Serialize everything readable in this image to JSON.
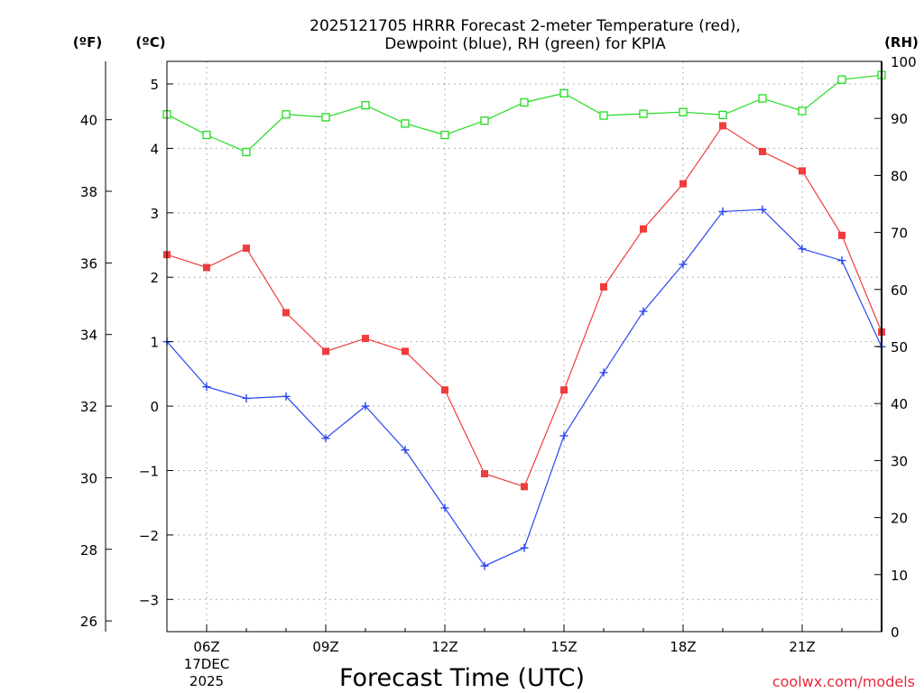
{
  "chart_data": {
    "type": "line",
    "title_lines": [
      "2025121705 HRRR Forecast 2-meter Temperature (red),",
      "Dewpoint (blue), RH (green) for KPIA"
    ],
    "xlabel": "Forecast Time (UTC)",
    "credit": "coolwx.com/models",
    "units": {
      "fahrenheit": "(ºF)",
      "celsius": "(ºC)",
      "rh": "(RH)"
    },
    "x": [
      5,
      6,
      7,
      8,
      9,
      10,
      11,
      12,
      13,
      14,
      15,
      16,
      17,
      18,
      19,
      20,
      21,
      22,
      23
    ],
    "xlim": [
      5,
      23
    ],
    "x_ticks": [
      {
        "x": 6,
        "label": "06Z",
        "sub": [
          "17DEC",
          "2025"
        ]
      },
      {
        "x": 9,
        "label": "09Z"
      },
      {
        "x": 12,
        "label": "12Z"
      },
      {
        "x": 15,
        "label": "15Z"
      },
      {
        "x": 18,
        "label": "18Z"
      },
      {
        "x": 21,
        "label": "21Z"
      }
    ],
    "celsius_axis": {
      "range": [
        -3.5,
        5.35
      ],
      "ticks": [
        -3,
        -2,
        -1,
        0,
        1,
        2,
        3,
        4,
        5
      ],
      "tick_labels": [
        "−3",
        "−2",
        "−1",
        "0",
        "1",
        "2",
        "3",
        "4",
        "5"
      ]
    },
    "fahrenheit_axis": {
      "range": [
        25.7,
        41.63
      ],
      "ticks": [
        26,
        28,
        30,
        32,
        34,
        36,
        38,
        40
      ],
      "tick_labels": [
        "26",
        "28",
        "30",
        "32",
        "34",
        "36",
        "38",
        "40"
      ]
    },
    "rh_axis": {
      "range": [
        0,
        100
      ],
      "ticks": [
        0,
        10,
        20,
        30,
        40,
        50,
        60,
        70,
        80,
        90,
        100
      ],
      "tick_labels": [
        "0",
        "10",
        "20",
        "30",
        "40",
        "50",
        "60",
        "70",
        "80",
        "90",
        "100"
      ]
    },
    "series": [
      {
        "name": "2-meter Temperature",
        "unit": "C",
        "color": "#f03c3c",
        "marker": "filled-square",
        "values": [
          2.35,
          2.15,
          2.45,
          1.45,
          0.85,
          1.05,
          0.85,
          0.25,
          -1.05,
          -1.25,
          0.25,
          1.85,
          2.75,
          3.45,
          4.35,
          3.95,
          3.65,
          2.65,
          1.15
        ]
      },
      {
        "name": "Dewpoint",
        "unit": "C",
        "color": "#2846f0",
        "marker": "plus",
        "values": [
          1.0,
          0.3,
          0.12,
          0.15,
          -0.5,
          0.0,
          -0.68,
          -1.58,
          -2.48,
          -2.2,
          -0.46,
          0.52,
          1.47,
          2.2,
          3.02,
          3.05,
          2.44,
          2.26,
          0.92
        ]
      },
      {
        "name": "RH",
        "unit": "%",
        "color": "#22dc22",
        "marker": "open-square",
        "values": [
          90.7,
          87.1,
          84.1,
          90.7,
          90.2,
          92.3,
          89.1,
          87.1,
          89.6,
          92.8,
          94.4,
          90.5,
          90.8,
          91.1,
          90.6,
          93.5,
          91.3,
          96.8,
          97.6
        ]
      }
    ]
  }
}
